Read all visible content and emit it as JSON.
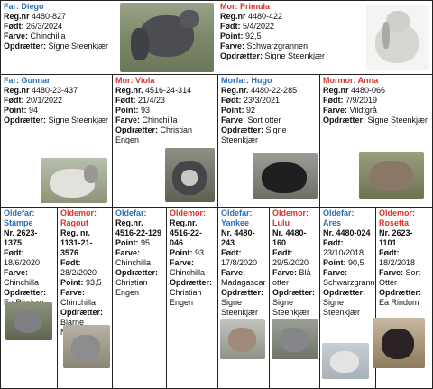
{
  "colors": {
    "male": "#2a6fb5",
    "female": "#d7322c",
    "border": "#222222"
  },
  "labels": {
    "reg": "Reg.nr",
    "regdot": "Reg.nr.",
    "born": "Født:",
    "color": "Farve:",
    "points": "Point:",
    "breeder": "Opdrætter:"
  },
  "far": {
    "role": "Far:",
    "name": "Diego",
    "reg": "4480-827",
    "born": "26/3/2024",
    "color": "Chinchilla",
    "breeder": "Signe Steenkjær"
  },
  "mor": {
    "role": "Mor:",
    "name": "Primula",
    "reg": "4480-422",
    "born": "5/4/2022",
    "points": "92,5",
    "color": "Schwarzgrannen",
    "breeder": "Signe Steenkjær"
  },
  "farfar": {
    "role": "Far:",
    "name": "Gunnar",
    "reg": "4480-23-437",
    "born": "20/1/2022",
    "points": "94",
    "breeder": "Signe Steenkjær"
  },
  "farmor": {
    "role": "Mor:",
    "name": "Viola",
    "reg": "4516-24-314",
    "born": "21/4/23",
    "points": "93",
    "color": "Chinchilla",
    "breeder": "Christian Engen"
  },
  "morfar": {
    "role": "Morfar:",
    "name": "Hugo",
    "reg": "4480-22-285",
    "born": "23/3/2021",
    "points": "92",
    "color": "Sort otter",
    "breeder": "Signe Steenkjær"
  },
  "mormor": {
    "role": "Mormor:",
    "name": "Anna",
    "reg": "4480-066",
    "born": "7/9/2019",
    "color": "Vildtgrå",
    "breeder": "Signe Steenkjær"
  },
  "oldefar_label": "Oldefar:",
  "oldemor_label": "Oldemor:",
  "ancestors": [
    {
      "name": "Stampe",
      "regline": "Nr. 2623-1375",
      "born": "18/6/2020",
      "color": "Chinchilla",
      "breeder": "Ea Rindom"
    },
    {
      "name": "Ragout",
      "regline": "Reg. nr. 1131-21-3576",
      "born": "28/2/2020",
      "points": "93,5",
      "color": "Chinchilla",
      "breeder": "Bjarne Nielsen"
    },
    {
      "name": "",
      "regline": "Reg.nr. 4516-22-129",
      "points": "95",
      "color": "Chinchilla",
      "breeder": "Christian Engen"
    },
    {
      "name": "",
      "regline": "Reg.nr. 4516-22-046",
      "points": "93",
      "color": "Chinchilla",
      "breeder": "Christian Engen"
    },
    {
      "name": "Yankee",
      "regline": "Nr. 4480-243",
      "born": "17/8/2020",
      "color": "Madagascar",
      "breeder": "Signe Steenkjær"
    },
    {
      "name": "Lulu",
      "regline": "Nr. 4480-160",
      "born": "29/5/2020",
      "color": "Blå otter",
      "breeder": "Signe Steenkjær"
    },
    {
      "name": "Ares",
      "regline": "Nr. 4480-024",
      "born": "23/10/2018",
      "points": "90,5",
      "color": "Schwarzgrannen",
      "breeder": "Signe Steenkjær"
    },
    {
      "name": "Rosetta",
      "regline": "Nr. 2623-1101",
      "born": "18/2/2018",
      "color": "Sort Otter",
      "breeder": "Ea Rindom"
    }
  ]
}
